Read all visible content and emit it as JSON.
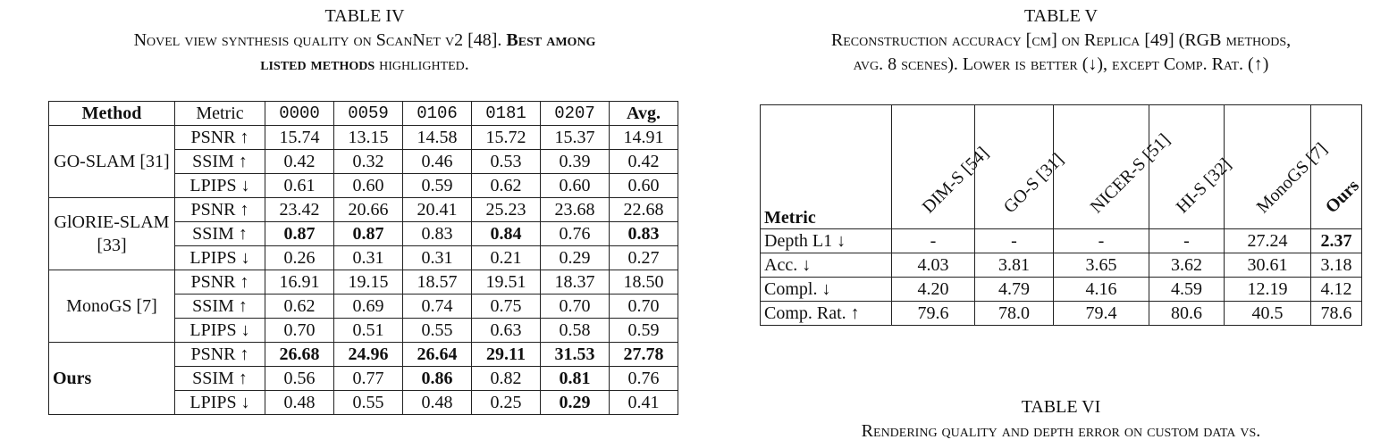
{
  "table4": {
    "label": "TABLE IV",
    "caption_line1_a": "Novel view synthesis quality on ScanNet v2 [48]. ",
    "caption_line1_b": "Best among",
    "caption_line2_a": "listed methods",
    "caption_line2_b": " highlighted.",
    "headers": {
      "method": "Method",
      "metric": "Metric",
      "s0": "0000",
      "s1": "0059",
      "s2": "0106",
      "s3": "0181",
      "s4": "0207",
      "avg": "Avg."
    },
    "methods": {
      "go_slam": "GO-SLAM [31]",
      "glorie_slam": "GlORIE-SLAM [33]",
      "monogs": "MonoGS [7]",
      "ours": "Ours"
    },
    "metrics": {
      "psnr": "PSNR ↑",
      "ssim": "SSIM ↑",
      "lpips": "LPIPS ↓"
    },
    "values": {
      "go_psnr": [
        "15.74",
        "13.15",
        "14.58",
        "15.72",
        "15.37",
        "14.91"
      ],
      "go_ssim": [
        "0.42",
        "0.32",
        "0.46",
        "0.53",
        "0.39",
        "0.42"
      ],
      "go_lpips": [
        "0.61",
        "0.60",
        "0.59",
        "0.62",
        "0.60",
        "0.60"
      ],
      "gl_psnr": [
        "23.42",
        "20.66",
        "20.41",
        "25.23",
        "23.68",
        "22.68"
      ],
      "gl_ssim": [
        "0.87",
        "0.87",
        "0.83",
        "0.84",
        "0.76",
        "0.83"
      ],
      "gl_lpips": [
        "0.26",
        "0.31",
        "0.31",
        "0.21",
        "0.29",
        "0.27"
      ],
      "mg_psnr": [
        "16.91",
        "19.15",
        "18.57",
        "19.51",
        "18.37",
        "18.50"
      ],
      "mg_ssim": [
        "0.62",
        "0.69",
        "0.74",
        "0.75",
        "0.70",
        "0.70"
      ],
      "mg_lpips": [
        "0.70",
        "0.51",
        "0.55",
        "0.63",
        "0.58",
        "0.59"
      ],
      "ou_psnr": [
        "26.68",
        "24.96",
        "26.64",
        "29.11",
        "31.53",
        "27.78"
      ],
      "ou_ssim": [
        "0.56",
        "0.77",
        "0.86",
        "0.82",
        "0.81",
        "0.76"
      ],
      "ou_lpips": [
        "0.48",
        "0.55",
        "0.48",
        "0.25",
        "0.29",
        "0.41"
      ]
    }
  },
  "table5": {
    "label": "TABLE V",
    "caption_line1": "Reconstruction accuracy [cm] on Replica [49] (RGB methods,",
    "caption_line2": "avg. 8 scenes). Lower is better (↓), except Comp. Rat. (↑)",
    "headers": {
      "metric": "Metric",
      "c0": "DIM-S [54]",
      "c1": "GO-S [31]",
      "c2": "NICER-S [51]",
      "c3": "HI-S [32]",
      "c4": "MonoGS [7]",
      "c5": "Ours"
    },
    "rows": {
      "depth": {
        "label": "Depth L1 ↓",
        "values": [
          "-",
          "-",
          "-",
          "-",
          "27.24",
          "2.37"
        ]
      },
      "acc": {
        "label": "Acc. ↓",
        "values": [
          "4.03",
          "3.81",
          "3.65",
          "3.62",
          "30.61",
          "3.18"
        ]
      },
      "compl": {
        "label": "Compl. ↓",
        "values": [
          "4.20",
          "4.79",
          "4.16",
          "4.59",
          "12.19",
          "4.12"
        ]
      },
      "comprat": {
        "label": "Comp. Rat. ↑",
        "values": [
          "79.6",
          "78.0",
          "79.4",
          "80.6",
          "40.5",
          "78.6"
        ]
      }
    }
  },
  "table6": {
    "label": "TABLE VI",
    "caption_line1": "Rendering quality and depth error on custom data vs."
  }
}
